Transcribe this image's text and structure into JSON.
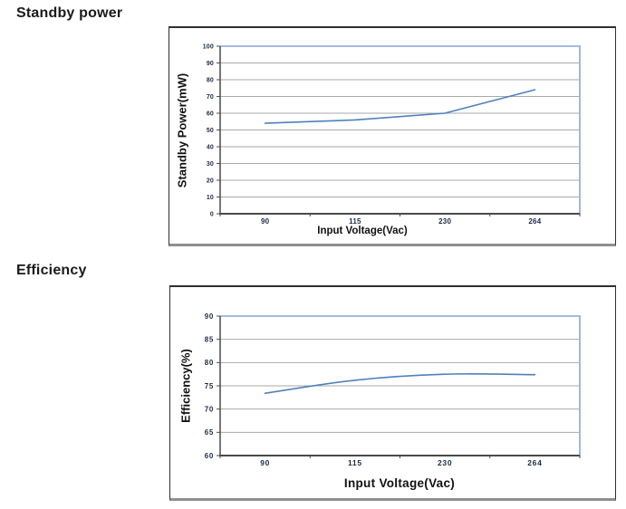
{
  "sections": [
    {
      "title": "Standby power"
    },
    {
      "title": "Efficiency"
    }
  ],
  "chart_data": [
    {
      "type": "line",
      "title": "Standby power",
      "categories": [
        "90",
        "115",
        "230",
        "264"
      ],
      "values": [
        54,
        56,
        60,
        74
      ],
      "xlabel": "Input Voltage(Vac)",
      "ylabel": "Standby Power(mW)",
      "ylim": [
        0,
        100
      ],
      "ystep": 10,
      "grid": true,
      "legend": false,
      "smooth": false,
      "line_color": "#4f81bd"
    },
    {
      "type": "line",
      "title": "Efficiency",
      "categories": [
        "90",
        "115",
        "230",
        "264"
      ],
      "values": [
        73.4,
        76.2,
        77.5,
        77.4
      ],
      "xlabel": "Input Voltage(Vac)",
      "ylabel": "Efficiency(%)",
      "ylim": [
        60,
        90
      ],
      "ystep": 5,
      "grid": true,
      "legend": false,
      "smooth": true,
      "line_color": "#4f81bd"
    }
  ],
  "colors": {
    "background": "#ffffff",
    "line": "#4f81bd",
    "plot_border": "#95b3d7",
    "gridline": "#a9a9a9",
    "axis": "#4a4a4a",
    "tick_label": "#1c2b45",
    "heading_text": "#1a1a1a"
  }
}
